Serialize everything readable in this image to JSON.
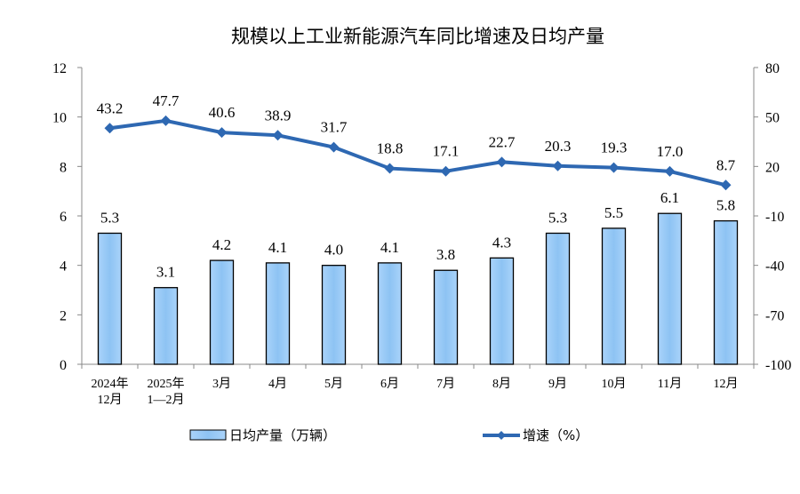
{
  "chart_data": {
    "type": "bar+line",
    "title": "规模以上工业新能源汽车同比增速及日均产量",
    "categories": [
      [
        "2024年",
        "12月"
      ],
      [
        "2025年",
        "1—2月"
      ],
      [
        "3月"
      ],
      [
        "4月"
      ],
      [
        "5月"
      ],
      [
        "6月"
      ],
      [
        "7月"
      ],
      [
        "8月"
      ],
      [
        "9月"
      ],
      [
        "10月"
      ],
      [
        "11月"
      ],
      [
        "12月"
      ]
    ],
    "series": [
      {
        "name": "日均产量（万辆）",
        "type": "bar",
        "axis": "left",
        "values": [
          5.3,
          3.1,
          4.2,
          4.1,
          4.0,
          4.1,
          3.8,
          4.3,
          5.3,
          5.5,
          6.1,
          5.8
        ],
        "color": "#9ccaf5"
      },
      {
        "name": "增速（%）",
        "type": "line",
        "axis": "right",
        "values": [
          43.2,
          47.7,
          40.6,
          38.9,
          31.7,
          18.8,
          17.1,
          22.7,
          20.3,
          19.3,
          17.0,
          8.7
        ],
        "color": "#2e68b2"
      }
    ],
    "left_axis": {
      "ylim": [
        0,
        12
      ],
      "ticks": [
        0,
        2,
        4,
        6,
        8,
        10,
        12
      ]
    },
    "right_axis": {
      "ylim": [
        -100,
        80
      ],
      "ticks": [
        -100,
        -70,
        -40,
        -10,
        20,
        50,
        80
      ]
    },
    "legend": "bottom",
    "grid": false
  }
}
